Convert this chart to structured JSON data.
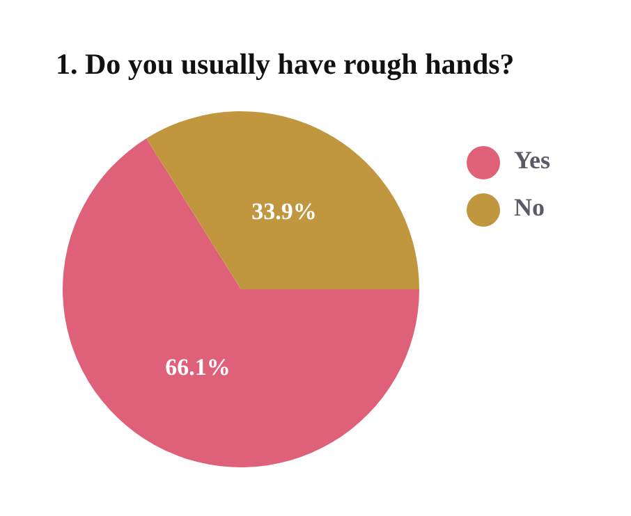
{
  "chart_data": {
    "type": "pie",
    "title": "1. Do you usually have rough hands?",
    "categories": [
      "Yes",
      "No"
    ],
    "values": [
      66.1,
      33.9
    ],
    "colors": [
      "#df6079",
      "#c0963e"
    ],
    "value_labels": [
      "66.1%",
      "33.9%"
    ],
    "legend": "right"
  }
}
